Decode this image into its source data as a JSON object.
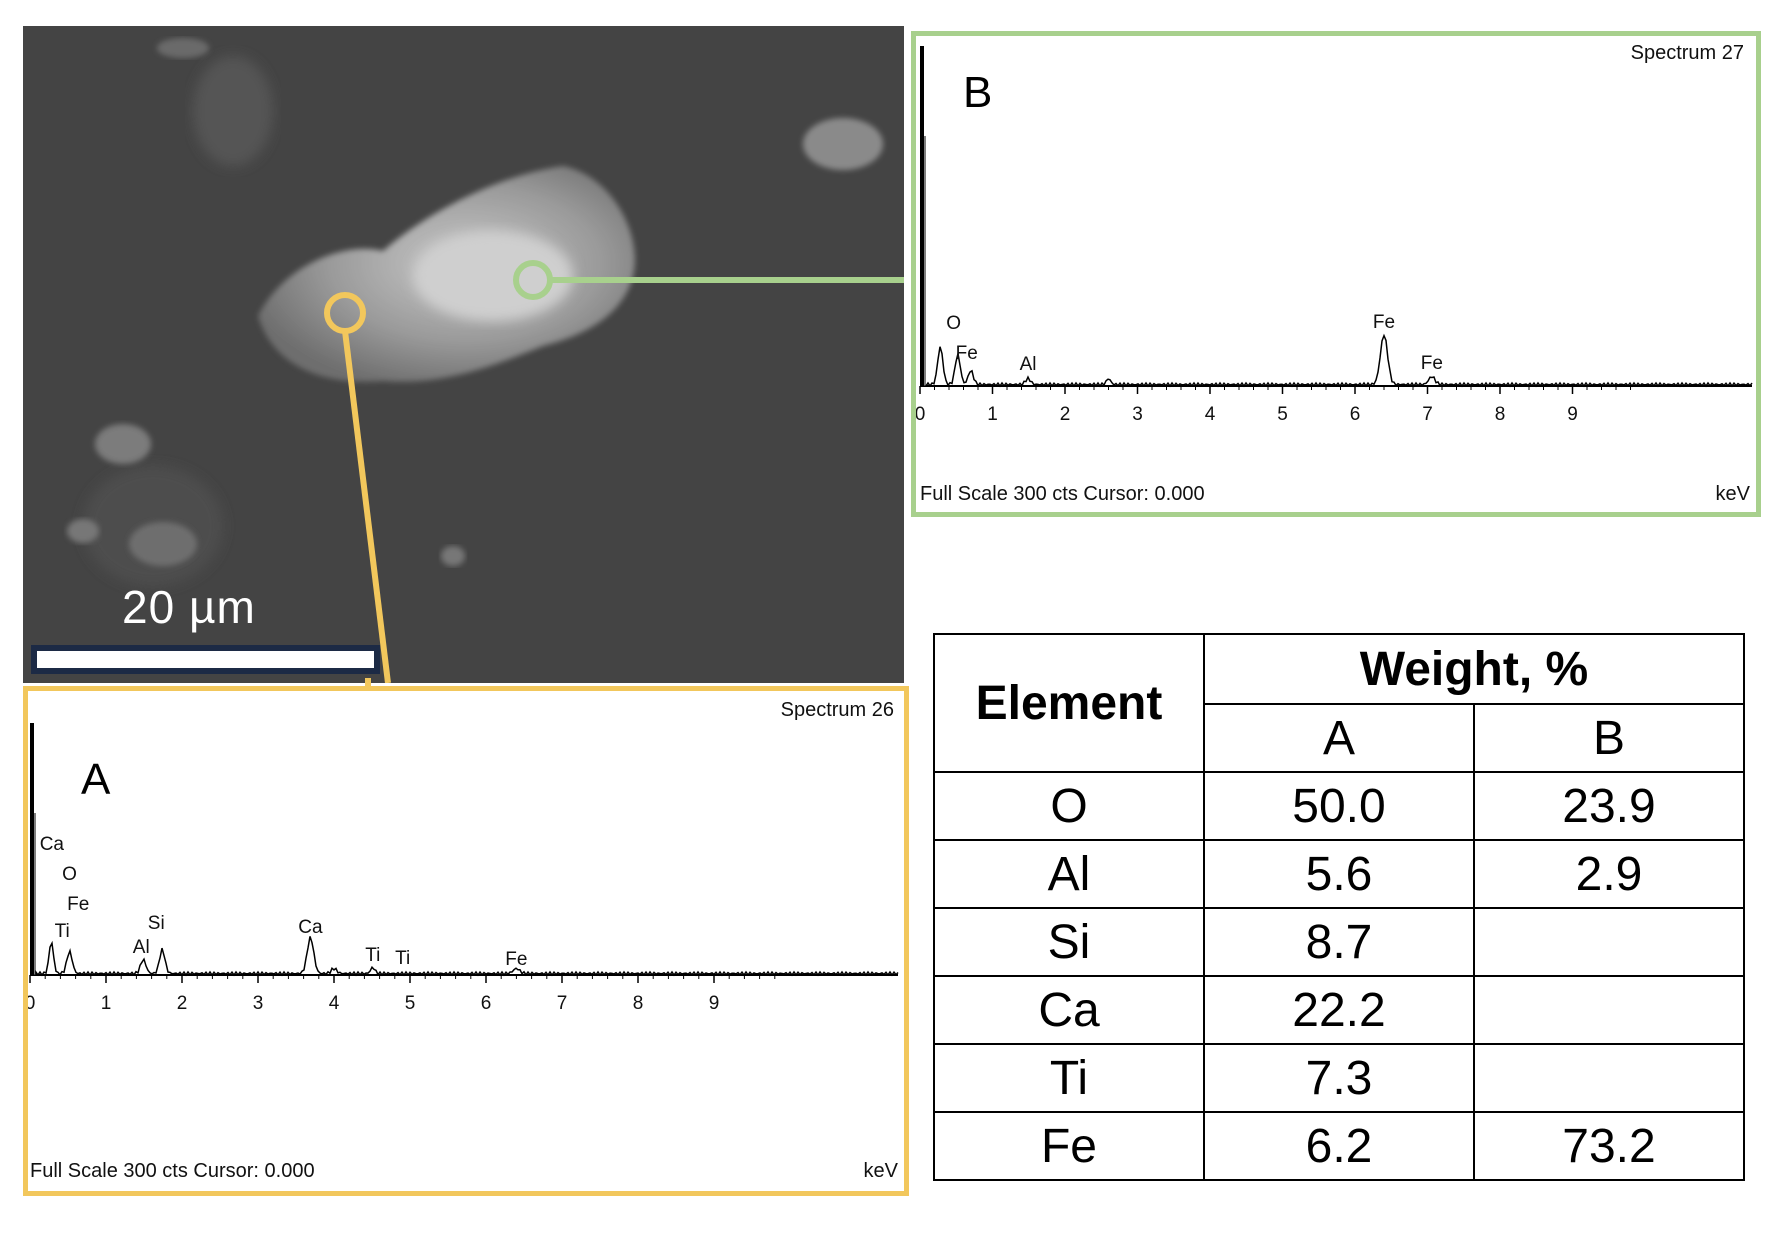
{
  "sem_image": {
    "scale_label": "20 µm"
  },
  "panel_b": {
    "letter": "B",
    "spectrum_name": "Spectrum 27",
    "footer": "Full Scale 300 cts Cursor: 0.000",
    "unit": "keV",
    "border_color": "#a8d08d",
    "peak_labels": [
      {
        "element": "O",
        "kev": 0.52
      },
      {
        "element": "Fe",
        "kev": 0.7
      },
      {
        "element": "Al",
        "kev": 1.49
      },
      {
        "element": "Fe",
        "kev": 6.4
      },
      {
        "element": "Fe",
        "kev": 7.06
      }
    ]
  },
  "panel_a": {
    "letter": "A",
    "spectrum_name": "Spectrum 26",
    "footer": "Full Scale 300 cts Cursor: 0.000",
    "unit": "keV",
    "border_color": "#f2c75c",
    "peak_labels": [
      {
        "element": "Ca",
        "kev": 0.34
      },
      {
        "element": "O",
        "kev": 0.52
      },
      {
        "element": "Fe",
        "kev": 0.7
      },
      {
        "element": "Ti",
        "kev": 0.45
      },
      {
        "element": "Al",
        "kev": 1.49
      },
      {
        "element": "Si",
        "kev": 1.74
      },
      {
        "element": "Ca",
        "kev": 3.69
      },
      {
        "element": "Ti",
        "kev": 4.51
      },
      {
        "element": "Ti",
        "kev": 4.93
      },
      {
        "element": "Fe",
        "kev": 6.4
      }
    ]
  },
  "axis_ticks": [
    "0",
    "1",
    "2",
    "3",
    "4",
    "5",
    "6",
    "7",
    "8",
    "9"
  ],
  "table": {
    "header_element": "Element",
    "header_weight": "Weight, %",
    "col_a": "A",
    "col_b": "B",
    "rows": [
      {
        "element": "O",
        "a": "50.0",
        "b": "23.9"
      },
      {
        "element": "Al",
        "a": "5.6",
        "b": "2.9"
      },
      {
        "element": "Si",
        "a": "8.7",
        "b": ""
      },
      {
        "element": "Ca",
        "a": "22.2",
        "b": ""
      },
      {
        "element": "Ti",
        "a": "7.3",
        "b": ""
      },
      {
        "element": "Fe",
        "a": "6.2",
        "b": "73.2"
      }
    ]
  }
}
